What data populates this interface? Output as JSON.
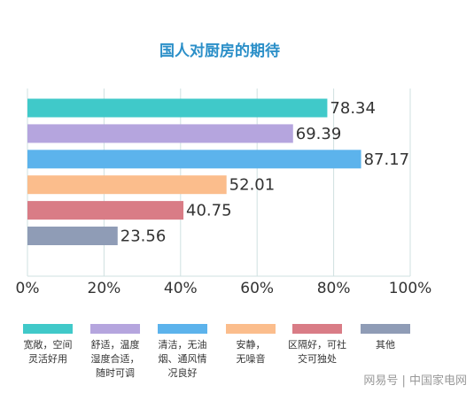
{
  "chart_data": {
    "type": "bar",
    "orientation": "horizontal",
    "title": "国人对厨房的期待",
    "categories": [
      "宽敞，空间\n灵活好用",
      "舒适，温度\n湿度合适，\n随时可调",
      "清洁，无油\n烟、通风情\n况良好",
      "安静，\n无噪音",
      "区隔好，可社\n交可独处",
      "其他"
    ],
    "values": [
      78.34,
      69.39,
      87.17,
      52.01,
      40.75,
      23.56
    ],
    "colors": [
      "#40c9c9",
      "#b5a5de",
      "#5cb3ec",
      "#fbbd8c",
      "#d97c86",
      "#8f9cb6"
    ],
    "xlim": [
      0,
      100
    ],
    "xticks": [
      {
        "value": 0,
        "label": "0%"
      },
      {
        "value": 20,
        "label": "20%"
      },
      {
        "value": 40,
        "label": "40%"
      },
      {
        "value": 60,
        "label": "60%"
      },
      {
        "value": 80,
        "label": "80%"
      },
      {
        "value": 100,
        "label": "100%"
      }
    ],
    "grid": true,
    "watermark": "网易号 | 中国家电网"
  }
}
